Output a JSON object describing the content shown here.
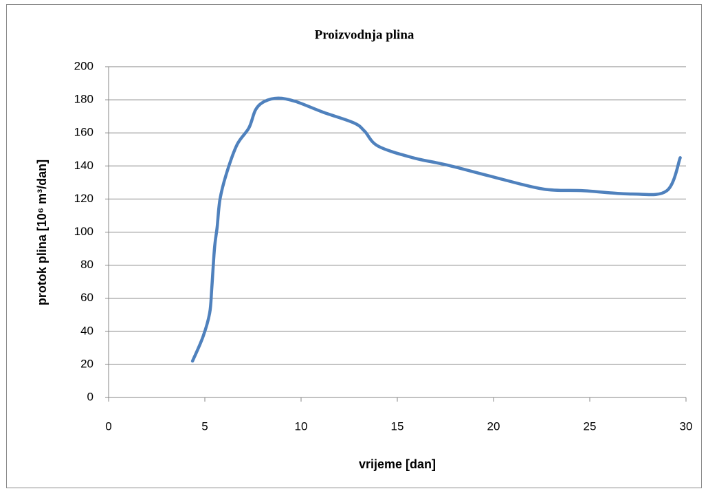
{
  "chart_data": {
    "type": "line",
    "title": "Proizvodnja plina",
    "x_label": "vrijeme [dan]",
    "y_label": "protok plina [10⁶ m³/dan]",
    "x": [
      4.36,
      4.9,
      5.25,
      5.36,
      5.5,
      5.64,
      5.79,
      6.14,
      6.68,
      7.29,
      7.64,
      8.1,
      8.82,
      9.71,
      11.14,
      12.75,
      13.3,
      14,
      15.8,
      17.6,
      20.1,
      22.6,
      24.7,
      27.2,
      29,
      29.7
    ],
    "series": [
      {
        "name": "protok plina",
        "color": "#4f81bd",
        "values": [
          22,
          36.6,
          51,
          66,
          90,
          103,
          120,
          136,
          153,
          163,
          174,
          179,
          181,
          179,
          172.5,
          166,
          161,
          152,
          145,
          140.5,
          133,
          126,
          125,
          123,
          125,
          145
        ]
      }
    ],
    "xlim": [
      0,
      30
    ],
    "xticks": [
      0,
      5,
      10,
      15,
      20,
      25,
      30
    ],
    "ylim": [
      0,
      200
    ],
    "yticks": [
      0,
      20,
      40,
      60,
      80,
      100,
      120,
      140,
      160,
      180,
      200
    ],
    "grid": true
  }
}
